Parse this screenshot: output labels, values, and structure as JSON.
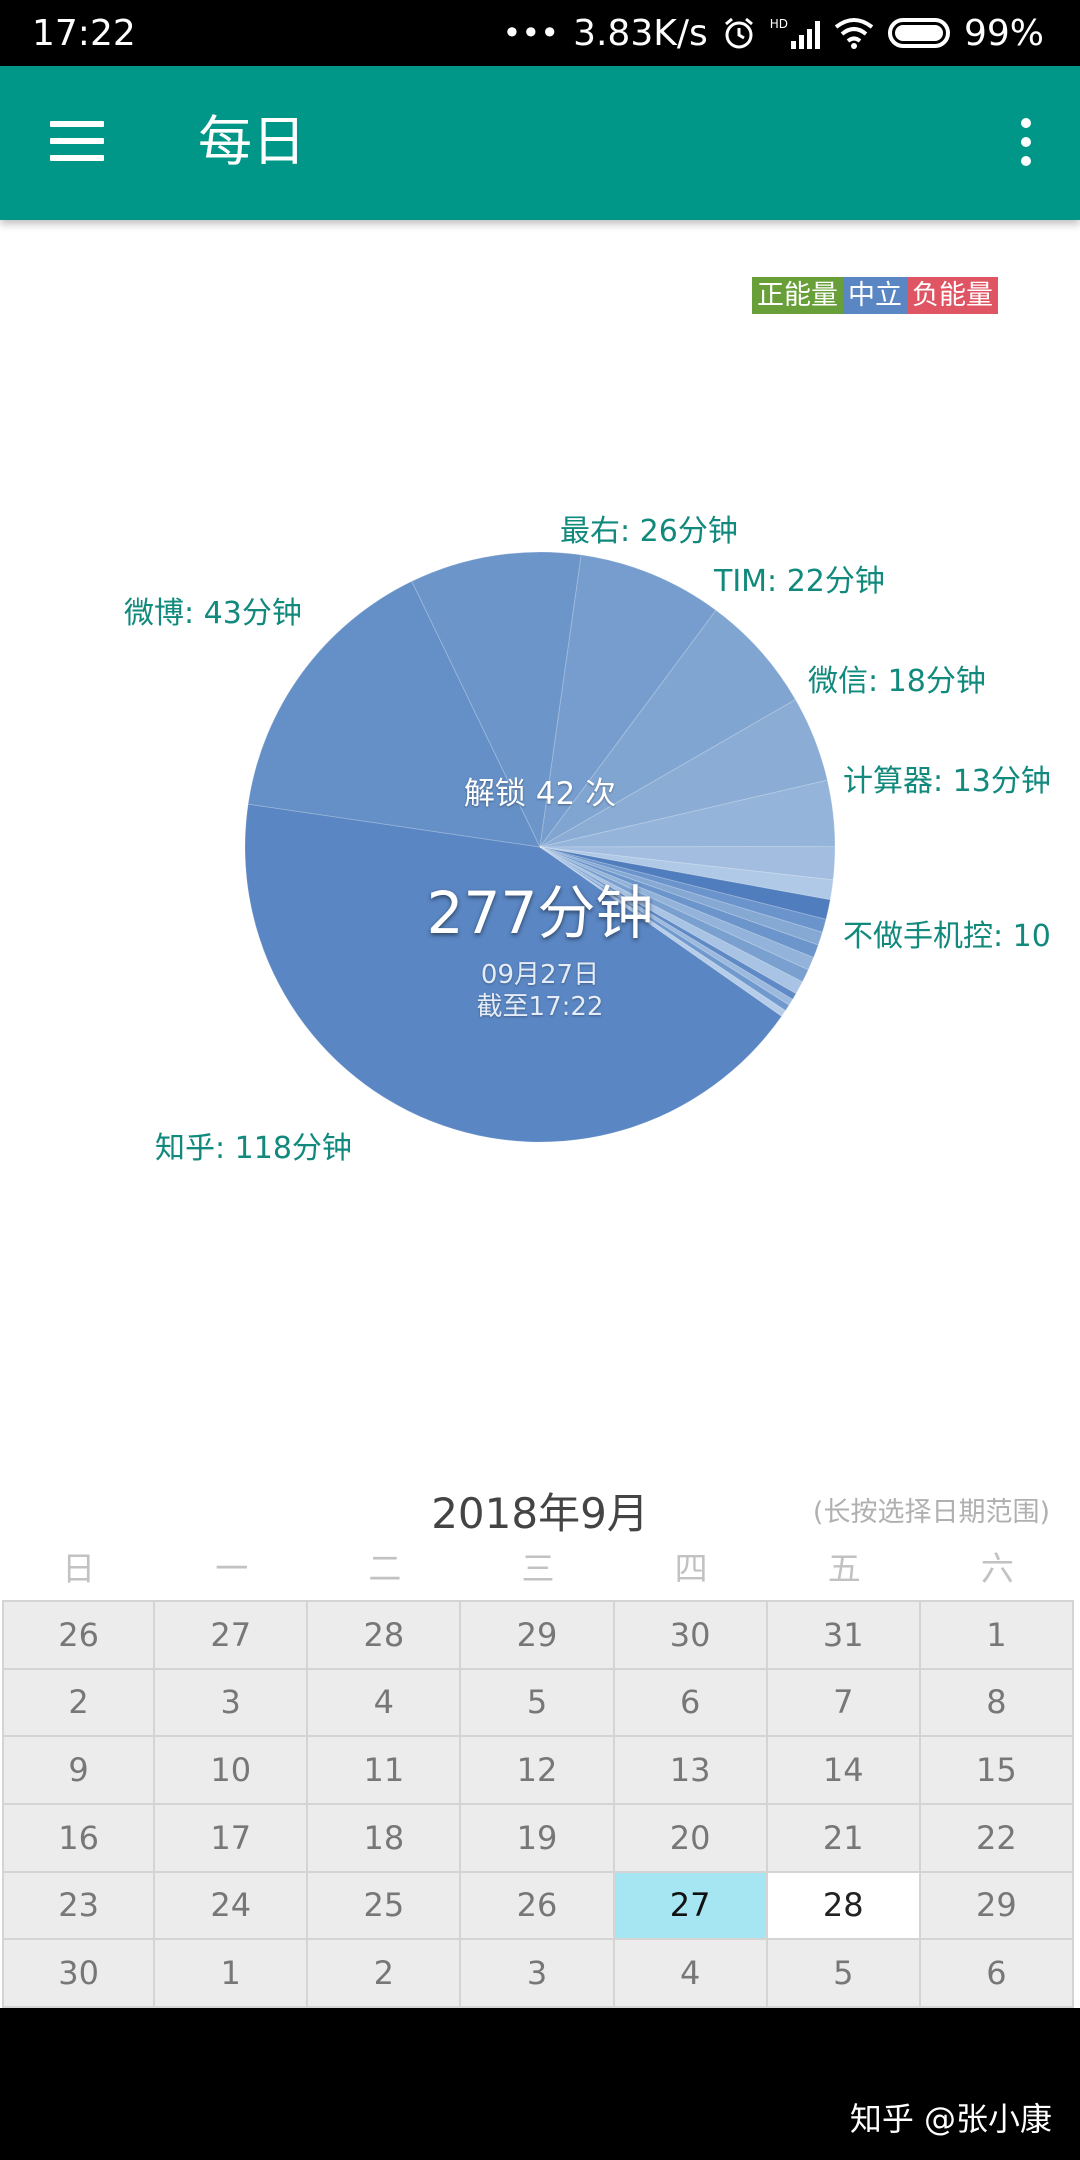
{
  "status_bar": {
    "time": "17:22",
    "dots": "•••",
    "speed": "3.83K/s",
    "alarm_icon": "alarm-clock-icon",
    "signal_label": "HD",
    "battery": "99%"
  },
  "app_bar": {
    "menu_icon": "hamburger-menu-icon",
    "title": "每日",
    "overflow_icon": "more-vert-icon"
  },
  "legend": [
    {
      "label": "正能量",
      "color": "#689f38"
    },
    {
      "label": "中立",
      "color": "#5a86c3"
    },
    {
      "label": "负能量",
      "color": "#e05563"
    }
  ],
  "chart_data": {
    "type": "pie",
    "unit": "分钟",
    "slices": [
      {
        "label": "知乎",
        "value": 118,
        "display": "知乎: 118分钟",
        "color": "#5a86c3"
      },
      {
        "label": "微博",
        "value": 43,
        "display": "微博: 43分钟",
        "color": "#6590c7"
      },
      {
        "label": "最右",
        "value": 26,
        "display": "最右: 26分钟",
        "color": "#6c96c9"
      },
      {
        "label": "TIM",
        "value": 22,
        "display": "TIM: 22分钟",
        "color": "#769dcd"
      },
      {
        "label": "微信",
        "value": 18,
        "display": "微信: 18分钟",
        "color": "#80a5d1"
      },
      {
        "label": "计算器",
        "value": 13,
        "display": "计算器: 13分钟",
        "color": "#8aacd5"
      },
      {
        "label": "不做手机控",
        "value": 10,
        "display": "不做手机控: 10",
        "color": "#94b4d9"
      },
      {
        "label": "",
        "value": 5,
        "display": "",
        "color": "#a2bde0"
      },
      {
        "label": "",
        "value": 3,
        "display": "",
        "color": "#b0c9e6"
      },
      {
        "label": "",
        "value": 3,
        "display": "",
        "color": "#4f7dbd"
      },
      {
        "label": "",
        "value": 2,
        "display": "",
        "color": "#6a94cb"
      },
      {
        "label": "",
        "value": 2,
        "display": "",
        "color": "#86a9d4"
      },
      {
        "label": "",
        "value": 2,
        "display": "",
        "color": "#6b95cb"
      },
      {
        "label": "",
        "value": 2,
        "display": "",
        "color": "#93b3da"
      },
      {
        "label": "",
        "value": 2,
        "display": "",
        "color": "#7aa0cf"
      },
      {
        "label": "",
        "value": 2,
        "display": "",
        "color": "#a9c3e4"
      },
      {
        "label": "",
        "value": 1,
        "display": "",
        "color": "#5f8ac6"
      },
      {
        "label": "",
        "value": 1,
        "display": "",
        "color": "#9cb9de"
      },
      {
        "label": "",
        "value": 1,
        "display": "",
        "color": "#7099cd"
      },
      {
        "label": "",
        "value": 1,
        "display": "",
        "color": "#b6cdea"
      }
    ],
    "center": {
      "unlock": "解锁 42 次",
      "total": "277分钟",
      "date": "09月27日",
      "until": "截至17:22"
    }
  },
  "calendar": {
    "title": "2018年9月",
    "hint": "(长按选择日期范围)",
    "weekdays": [
      "日",
      "一",
      "二",
      "三",
      "四",
      "五",
      "六"
    ],
    "days": [
      "26",
      "27",
      "28",
      "29",
      "30",
      "31",
      "1",
      "2",
      "3",
      "4",
      "5",
      "6",
      "7",
      "8",
      "9",
      "10",
      "11",
      "12",
      "13",
      "14",
      "15",
      "16",
      "17",
      "18",
      "19",
      "20",
      "21",
      "22",
      "23",
      "24",
      "25",
      "26",
      "27",
      "28",
      "29",
      "30",
      "1",
      "2",
      "3",
      "4",
      "5",
      "6"
    ],
    "current_index": 33,
    "selected_index": 32
  },
  "watermark": "知乎 @张小康"
}
